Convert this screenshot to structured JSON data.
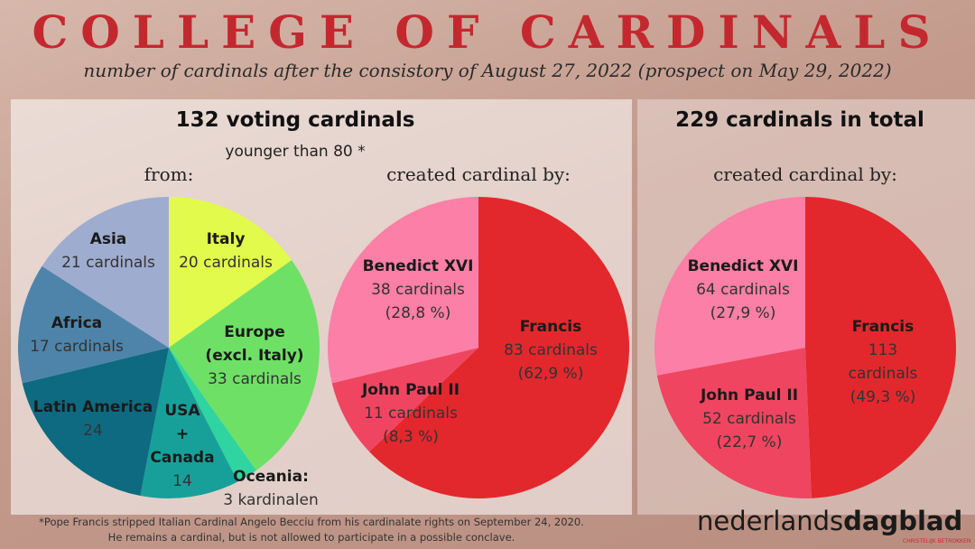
{
  "title": "COLLEGE OF CARDINALS",
  "subtitle": "number of cardinals after the consistory of August 27, 2022 (prospect on May 29, 2022)",
  "header_left": {
    "title": "132 voting cardinals",
    "subtitle": "younger than 80 *"
  },
  "header_right": {
    "title": "229 cardinals in total"
  },
  "footnote": [
    "*Pope Francis stripped Italian Cardinal Angelo Becciu from his cardinalate rights on September 24, 2020.",
    "He remains a cardinal, but is not allowed to participate in a possible conclave."
  ],
  "logo": {
    "part1": "nederlands",
    "part2": "dagblad",
    "tagline": "CHRISTELIJK BETROKKEN"
  },
  "chart_data": [
    {
      "type": "pie",
      "title": "from:",
      "categories": [
        "Italy",
        "Europe\n(excl. Italy)",
        "Oceania:",
        "USA\n+\nCanada",
        "Latin America",
        "Africa",
        "Asia"
      ],
      "values": [
        20,
        33,
        3,
        14,
        24,
        17,
        21
      ],
      "value_labels": [
        "20 cardinals",
        "33 cardinals",
        "3 kardinalen",
        "14",
        "24",
        "17 cardinals",
        "21 cardinals"
      ],
      "colors": [
        "#e2fa4b",
        "#6fe066",
        "#2fd4a0",
        "#17a09a",
        "#0e6a80",
        "#4e84aa",
        "#9eaccf"
      ]
    },
    {
      "type": "pie",
      "title": "created cardinal by:",
      "categories": [
        "Francis",
        "John Paul II",
        "Benedict XVI"
      ],
      "values": [
        83,
        11,
        38
      ],
      "value_labels": [
        "83 cardinals",
        "11 cardinals",
        "38 cardinals"
      ],
      "percent_labels": [
        "(62,9 %)",
        "(8,3 %)",
        "(28,8 %)"
      ],
      "colors": [
        "#e2282d",
        "#ef4560",
        "#fb7fa7"
      ]
    },
    {
      "type": "pie",
      "title": "created cardinal by:",
      "categories": [
        "Francis",
        "John Paul II",
        "Benedict XVI"
      ],
      "values": [
        113,
        52,
        64
      ],
      "value_labels": [
        "113 cardinals",
        "52 cardinals",
        "64 cardinals"
      ],
      "percent_labels": [
        "(49,3 %)",
        "(22,7 %)",
        "(27,9 %)"
      ],
      "colors": [
        "#e2282d",
        "#ef4560",
        "#fb7fa7"
      ]
    }
  ]
}
